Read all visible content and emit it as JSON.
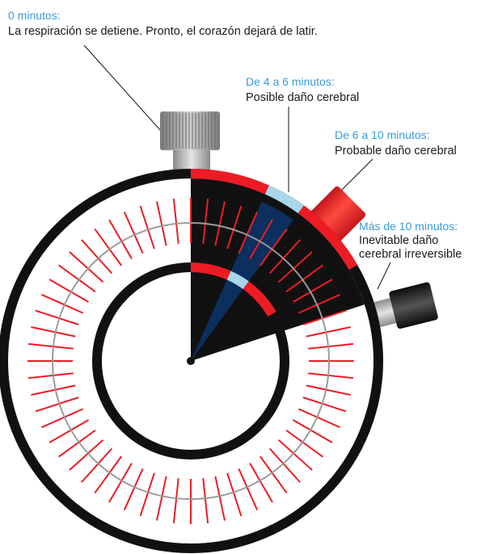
{
  "annotations": [
    {
      "id": "0",
      "time": "0 minutos:",
      "lines": [
        "La respiración se detiene. Pronto, el corazón dejará de latir."
      ]
    },
    {
      "id": "4-6",
      "time": "De 4 a 6 minutos:",
      "lines": [
        "Posible daño cerebral"
      ]
    },
    {
      "id": "6-10",
      "time": "De 6 a 10 minutos:",
      "lines": [
        "Probable daño cerebral"
      ]
    },
    {
      "id": "10plus",
      "time": "Más de 10 minutos:",
      "lines": [
        "Inevitable daño",
        "cerebral irreversible"
      ]
    }
  ],
  "dial": {
    "tick_marks_outer": 60,
    "segments_minutes": [
      {
        "from": 0,
        "to": 4,
        "color": "#ed1c24"
      },
      {
        "from": 4,
        "to": 6,
        "color": "#a7d7e8"
      },
      {
        "from": 6,
        "to": 10,
        "color": "#ed1c24"
      }
    ],
    "hand_wedge_minutes": [
      4,
      6
    ],
    "hand_wedge_color": "#0b2f5e",
    "dark_sector_minutes": [
      0,
      12
    ]
  },
  "colors": {
    "red": "#ed1c24",
    "light_blue": "#a7d7e8",
    "navy": "#0b2f5e",
    "black": "#111111",
    "grey": "#9a9a9a",
    "label_blue": "#3a9ad9"
  }
}
